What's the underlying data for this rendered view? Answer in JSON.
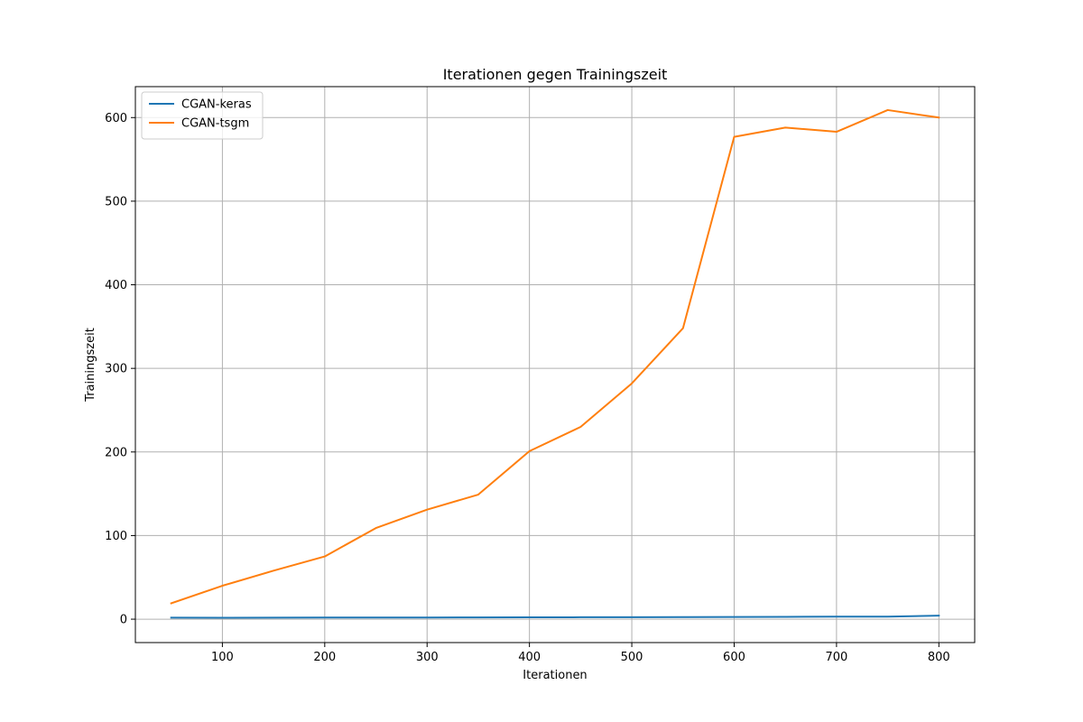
{
  "chart_data": {
    "type": "line",
    "title": "Iterationen gegen Trainingszeit",
    "xlabel": "Iterationen",
    "ylabel": "Trainingszeit",
    "xlim": [
      15,
      835
    ],
    "ylim": [
      -28,
      637
    ],
    "xticks": [
      100,
      200,
      300,
      400,
      500,
      600,
      700,
      800
    ],
    "yticks": [
      0,
      100,
      200,
      300,
      400,
      500,
      600
    ],
    "grid": true,
    "legend_position": "top-left",
    "x": [
      50,
      100,
      150,
      200,
      250,
      300,
      350,
      400,
      450,
      500,
      550,
      600,
      650,
      700,
      750,
      800
    ],
    "series": [
      {
        "name": "CGAN-keras",
        "color": "#1f77b4",
        "values": [
          1.8,
          1.7,
          1.8,
          1.9,
          2.0,
          2.0,
          2.1,
          2.2,
          2.3,
          2.4,
          2.5,
          2.6,
          2.8,
          3.0,
          3.1,
          4.2
        ]
      },
      {
        "name": "CGAN-tsgm",
        "color": "#ff7f0e",
        "values": [
          19,
          40,
          58,
          75,
          109,
          131,
          149,
          201,
          230,
          282,
          348,
          577,
          588,
          583,
          609,
          600
        ]
      }
    ]
  }
}
